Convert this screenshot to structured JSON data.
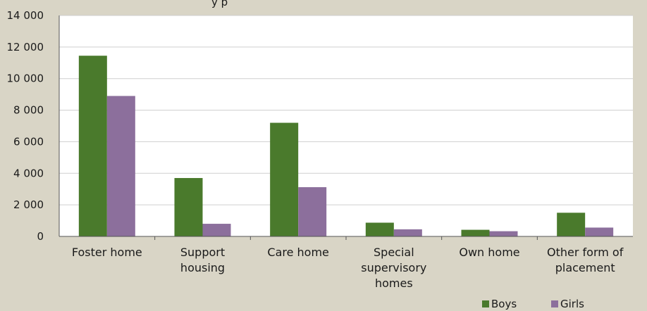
{
  "chart_data": {
    "type": "bar",
    "title": "y p",
    "categories": [
      [
        "Foster home"
      ],
      [
        "Support",
        "housing"
      ],
      [
        "Care home"
      ],
      [
        "Special",
        "supervisory",
        "homes"
      ],
      [
        "Own home"
      ],
      [
        "Other form of",
        "placement"
      ]
    ],
    "series": [
      {
        "name": "Boys",
        "color": "#4a7a2c",
        "values": [
          11450,
          3700,
          7200,
          870,
          420,
          1500
        ]
      },
      {
        "name": "Girls",
        "color": "#8c6f9c",
        "values": [
          8900,
          800,
          3120,
          450,
          330,
          560
        ]
      }
    ],
    "ylim": [
      0,
      14000
    ],
    "yticks": [
      0,
      2000,
      4000,
      6000,
      8000,
      10000,
      12000,
      14000
    ],
    "ytick_labels": [
      "0",
      "2 000",
      "4 000",
      "6 000",
      "8 000",
      "10 000",
      "12 000",
      "14 000"
    ],
    "grid": true,
    "legend_position": "bottom-right",
    "colors": {
      "background": "#d9d5c6",
      "plot_background": "#ffffff",
      "grid": "#cfcfcf",
      "axis": "#555555"
    }
  }
}
